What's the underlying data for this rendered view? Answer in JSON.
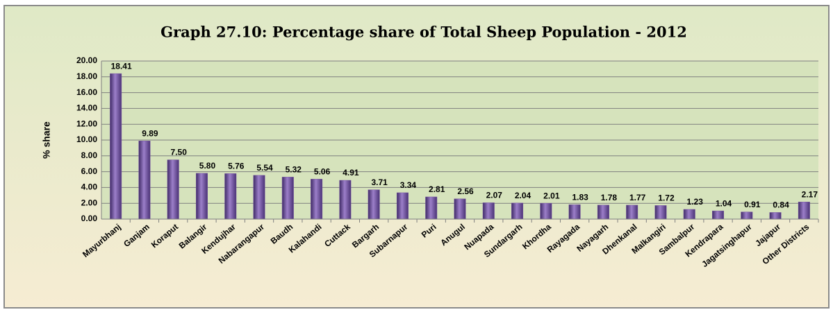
{
  "chart_data": {
    "type": "bar",
    "title": "Graph 27.10: Percentage share of Total Sheep Population - 2012",
    "y_label": "% share",
    "categories": [
      "Mayurbhanj",
      "Ganjam",
      "Koraput",
      "Balangir",
      "Kendujhar",
      "Nabarangapur",
      "Baudh",
      "Kalahandi",
      "Cuttack",
      "Bargarh",
      "Subarnapur",
      "Puri",
      "Anugul",
      "Nuapada",
      "Sundargarh",
      "Khordha",
      "Rayagada",
      "Nayagarh",
      "Dhenkanal",
      "Malkangiri",
      "Sambalpur",
      "Kendrapara",
      "Jagatsinghapur",
      "Jajapur",
      "Other Districts"
    ],
    "values": [
      18.41,
      9.89,
      7.5,
      5.8,
      5.76,
      5.54,
      5.32,
      5.06,
      4.91,
      3.71,
      3.34,
      2.81,
      2.56,
      2.07,
      2.04,
      2.01,
      1.83,
      1.78,
      1.77,
      1.72,
      1.23,
      1.04,
      0.91,
      0.84,
      2.17
    ],
    "value_labels": [
      "18.41",
      "9.89",
      "7.50",
      "5.80",
      "5.76",
      "5.54",
      "5.32",
      "5.06",
      "4.91",
      "3.71",
      "3.34",
      "2.81",
      "2.56",
      "2.07",
      "2.04",
      "2.01",
      "1.83",
      "1.78",
      "1.77",
      "1.72",
      "1.23",
      "1.04",
      "0.91",
      "0.84",
      "2.17"
    ],
    "color": "#7b5aa6",
    "ylim": [
      0,
      20
    ],
    "yticks": [
      {
        "value": 0,
        "label": "0.00"
      },
      {
        "value": 2,
        "label": "2.00"
      },
      {
        "value": 4,
        "label": "4.00"
      },
      {
        "value": 6,
        "label": "6.00"
      },
      {
        "value": 8,
        "label": "8.00"
      },
      {
        "value": 10,
        "label": "10.00"
      },
      {
        "value": 12,
        "label": "12.00"
      },
      {
        "value": 14,
        "label": "14.00"
      },
      {
        "value": 16,
        "label": "16.00"
      },
      {
        "value": 18,
        "label": "18.00"
      },
      {
        "value": 20,
        "label": "20.00"
      }
    ],
    "grid": true
  }
}
